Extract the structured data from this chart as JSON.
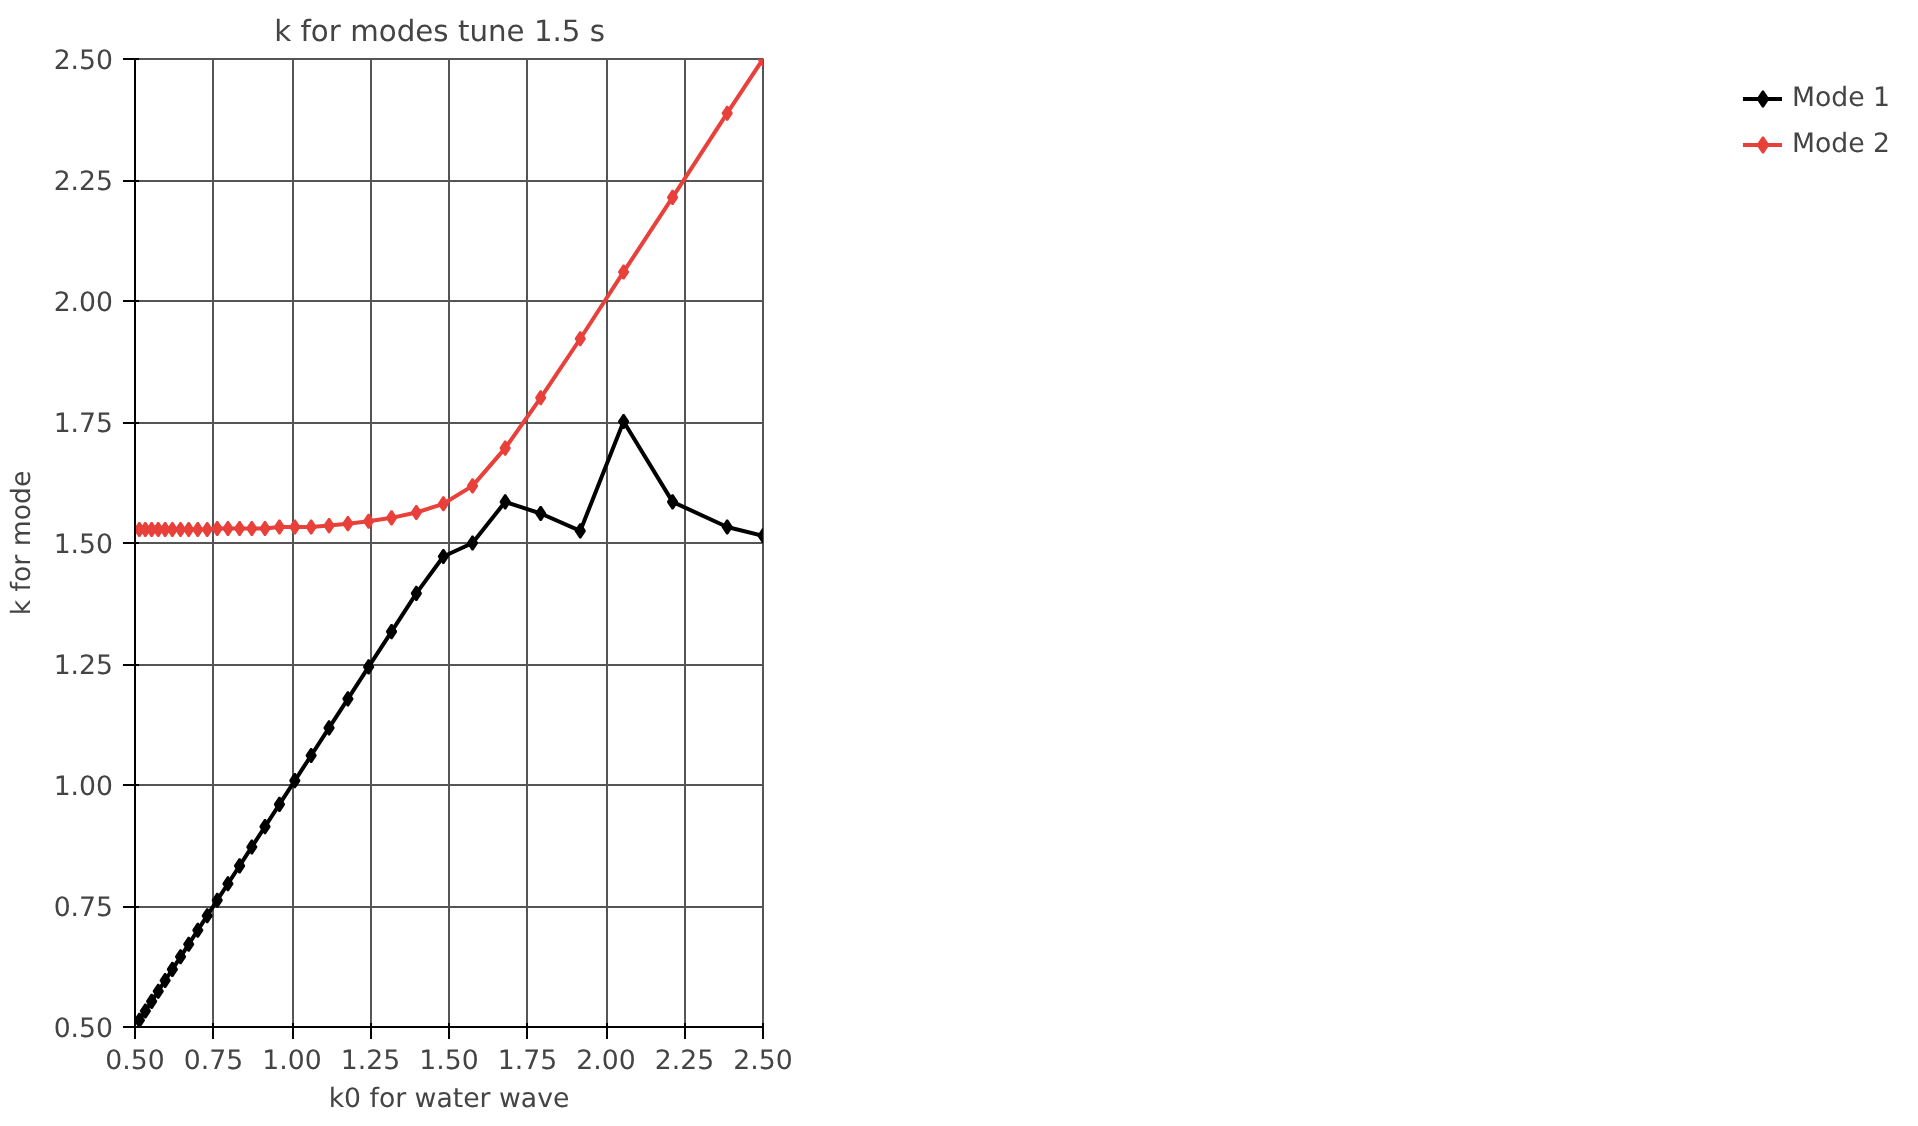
{
  "chart_data": {
    "type": "line",
    "title": "k for modes   tune 1.5 s",
    "xlabel": "k0 for water wave",
    "ylabel": "k for mode",
    "x": [
      0.514,
      0.533,
      0.553,
      0.574,
      0.596,
      0.619,
      0.645,
      0.671,
      0.7,
      0.73,
      0.762,
      0.796,
      0.833,
      0.872,
      0.914,
      0.96,
      1.009,
      1.061,
      1.118,
      1.178,
      1.244,
      1.317,
      1.396,
      1.482,
      1.575,
      1.679,
      1.792,
      1.918,
      2.056,
      2.212,
      2.386,
      2.5
    ],
    "series": [
      {
        "name": "Mode 1",
        "color": "#000000",
        "values": [
          0.514,
          0.533,
          0.553,
          0.574,
          0.596,
          0.619,
          0.645,
          0.671,
          0.7,
          0.73,
          0.762,
          0.796,
          0.833,
          0.872,
          0.914,
          0.96,
          1.009,
          1.061,
          1.118,
          1.178,
          1.244,
          1.317,
          1.396,
          1.472,
          1.5,
          1.585,
          1.561,
          1.525,
          1.751,
          1.585,
          1.533,
          1.515
        ]
      },
      {
        "name": "Mode 2",
        "color": "#e8403a",
        "values": [
          1.528,
          1.528,
          1.528,
          1.528,
          1.528,
          1.528,
          1.528,
          1.528,
          1.528,
          1.528,
          1.53,
          1.53,
          1.53,
          1.53,
          1.53,
          1.533,
          1.533,
          1.533,
          1.536,
          1.54,
          1.545,
          1.552,
          1.563,
          1.581,
          1.618,
          1.696,
          1.8,
          1.922,
          2.06,
          2.214,
          2.388,
          2.5
        ]
      }
    ],
    "xlim": [
      0.5,
      2.5
    ],
    "xticks": [
      {
        "value": 0.5,
        "label": "0.50"
      },
      {
        "value": 0.75,
        "label": "0.75"
      },
      {
        "value": 1.0,
        "label": "1.00"
      },
      {
        "value": 1.25,
        "label": "1.25"
      },
      {
        "value": 1.5,
        "label": "1.50"
      },
      {
        "value": 1.75,
        "label": "1.75"
      },
      {
        "value": 2.0,
        "label": "2.00"
      },
      {
        "value": 2.25,
        "label": "2.25"
      },
      {
        "value": 2.5,
        "label": "2.50"
      }
    ],
    "ylim": [
      0.5,
      2.5
    ],
    "yticks": [
      {
        "value": 0.5,
        "label": "0.50"
      },
      {
        "value": 0.75,
        "label": "0.75"
      },
      {
        "value": 1.0,
        "label": "1.00"
      },
      {
        "value": 1.25,
        "label": "1.25"
      },
      {
        "value": 1.5,
        "label": "1.50"
      },
      {
        "value": 1.75,
        "label": "1.75"
      },
      {
        "value": 2.0,
        "label": "2.00"
      },
      {
        "value": 2.25,
        "label": "2.25"
      },
      {
        "value": 2.5,
        "label": "2.50"
      }
    ],
    "grid": true,
    "legend": "right",
    "marker": "diamond",
    "line_style": "solid"
  }
}
